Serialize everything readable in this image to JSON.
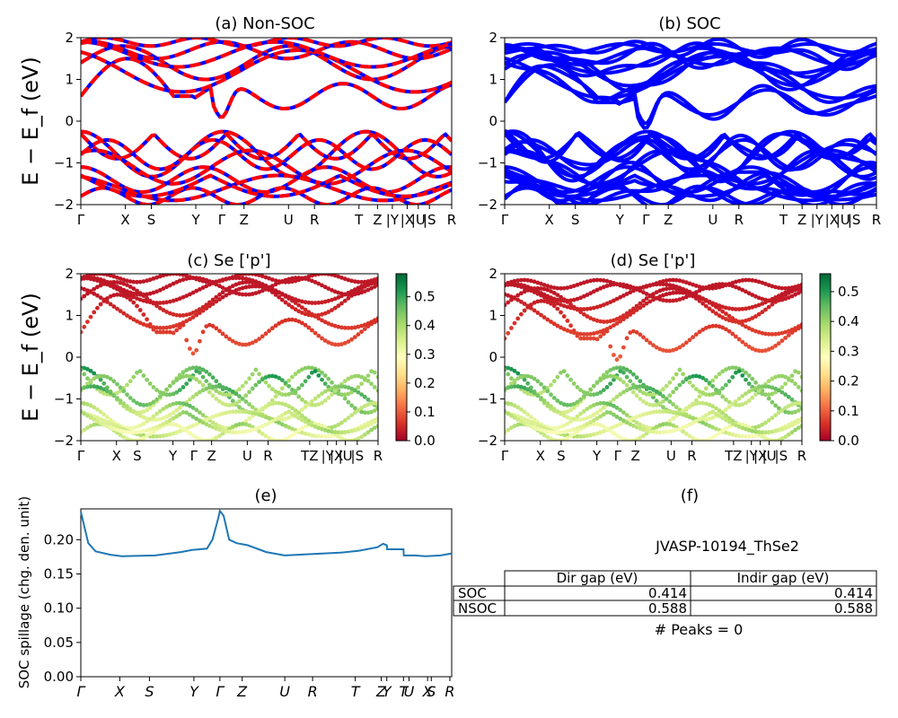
{
  "chart_data": [
    {
      "id": "a",
      "type": "line",
      "title": "(a) Non-SOC",
      "ylabel": "E − E_f (eV)",
      "ylim": [
        -2,
        2
      ],
      "yticks": [
        "2",
        "1",
        "0",
        "−1",
        "−2"
      ],
      "kpoints": [
        "Γ",
        "X",
        "S",
        "Y",
        "Γ",
        "Z",
        "U",
        "R",
        "T",
        "Z",
        "|Y",
        "|X",
        "|U",
        "|S",
        "R"
      ],
      "kpoint_positions": [
        0,
        0.12,
        0.19,
        0.31,
        0.38,
        0.44,
        0.56,
        0.63,
        0.75,
        0.8,
        0.84,
        0.88,
        0.91,
        0.94,
        1.0
      ],
      "series": [
        {
          "color_primary": "#ff0000",
          "color_secondary": "#0000ff"
        }
      ]
    },
    {
      "id": "b",
      "type": "line",
      "title": "(b) SOC",
      "ylim": [
        -2,
        2
      ],
      "yticks": [
        "2",
        "1",
        "0",
        "−1",
        "−2"
      ],
      "kpoints": [
        "Γ",
        "X",
        "S",
        "Y",
        "Γ",
        "Z",
        "U",
        "R",
        "T",
        "Z",
        "|Y",
        "|X",
        "|U",
        "|S",
        "R"
      ],
      "kpoint_positions": [
        0,
        0.12,
        0.19,
        0.31,
        0.38,
        0.44,
        0.56,
        0.63,
        0.75,
        0.8,
        0.84,
        0.88,
        0.91,
        0.94,
        1.0
      ],
      "series": [
        {
          "color_primary": "#0000ff"
        }
      ]
    },
    {
      "id": "c",
      "type": "scatter",
      "title": "(c)  Se ['p']",
      "ylabel": "E − E_f (eV)",
      "ylim": [
        -2,
        2
      ],
      "yticks": [
        "2",
        "1",
        "0",
        "−1",
        "−2"
      ],
      "kpoints": [
        "Γ",
        "X",
        "S",
        "Y",
        "Γ",
        "Z",
        "U",
        "R",
        "TZ",
        "|Y",
        "|X",
        "|U",
        "|S",
        "R"
      ],
      "kpoint_positions": [
        0,
        0.12,
        0.19,
        0.31,
        0.38,
        0.44,
        0.56,
        0.63,
        0.77,
        0.83,
        0.86,
        0.89,
        0.93,
        1.0
      ],
      "colorbar": {
        "min": 0.0,
        "max": 0.58,
        "ticks": [
          "0.5",
          "0.4",
          "0.3",
          "0.2",
          "0.1",
          "0.0"
        ],
        "colormap": "RdYlGn"
      }
    },
    {
      "id": "d",
      "type": "scatter",
      "title": "(d) Se ['p']",
      "ylim": [
        -2,
        2
      ],
      "yticks": [
        "2",
        "1",
        "0",
        "−1",
        "−2"
      ],
      "kpoints": [
        "Γ",
        "X",
        "S",
        "Y",
        "Γ",
        "Z",
        "U",
        "R",
        "TZ",
        "|Y",
        "|X",
        "|U",
        "|S",
        "R"
      ],
      "kpoint_positions": [
        0,
        0.12,
        0.19,
        0.31,
        0.38,
        0.44,
        0.56,
        0.63,
        0.77,
        0.83,
        0.86,
        0.89,
        0.93,
        1.0
      ],
      "colorbar": {
        "min": 0.0,
        "max": 0.56,
        "ticks": [
          "0.5",
          "0.4",
          "0.3",
          "0.2",
          "0.1",
          "0.0"
        ],
        "colormap": "RdYlGn"
      }
    },
    {
      "id": "e",
      "type": "line",
      "title": "(e)",
      "ylabel": "SOC spillage (chg. den. unit)",
      "ylim": [
        0.0,
        0.245
      ],
      "yticks": [
        "0.20",
        "0.15",
        "0.10",
        "0.05",
        "0.00"
      ],
      "ytick_values": [
        0.2,
        0.15,
        0.1,
        0.05,
        0.0
      ],
      "kpoints": [
        "Γ",
        "X",
        "S",
        "Y",
        "Γ",
        "Z",
        "U",
        "R",
        "T",
        "Z",
        "Y",
        "T",
        "U",
        "X",
        "S",
        "R"
      ],
      "kpoint_positions": [
        0,
        0.105,
        0.185,
        0.305,
        0.375,
        0.435,
        0.55,
        0.625,
        0.74,
        0.81,
        0.825,
        0.87,
        0.885,
        0.935,
        0.945,
        0.995
      ],
      "x": [
        0,
        0.02,
        0.04,
        0.08,
        0.11,
        0.2,
        0.27,
        0.3,
        0.34,
        0.355,
        0.37,
        0.375,
        0.385,
        0.4,
        0.42,
        0.45,
        0.5,
        0.55,
        0.62,
        0.7,
        0.75,
        0.8,
        0.815,
        0.825,
        0.826,
        0.87,
        0.871,
        0.9,
        0.93,
        0.97,
        1.0
      ],
      "y": [
        0.241,
        0.195,
        0.183,
        0.178,
        0.176,
        0.177,
        0.182,
        0.185,
        0.187,
        0.2,
        0.23,
        0.242,
        0.235,
        0.2,
        0.195,
        0.192,
        0.182,
        0.177,
        0.179,
        0.181,
        0.184,
        0.189,
        0.194,
        0.192,
        0.186,
        0.186,
        0.177,
        0.177,
        0.176,
        0.177,
        0.18
      ],
      "series": [
        {
          "color": "#1f77b4"
        }
      ]
    }
  ],
  "info_panel": {
    "title": "(f)",
    "material": "JVASP-10194_ThSe2",
    "table": {
      "headers": [
        "",
        "Dir gap (eV)",
        "Indir gap (eV)"
      ],
      "rows": [
        [
          "SOC",
          "0.414",
          "0.414"
        ],
        [
          "NSOC",
          "0.588",
          "0.588"
        ]
      ]
    },
    "peaks": "# Peaks = 0"
  }
}
